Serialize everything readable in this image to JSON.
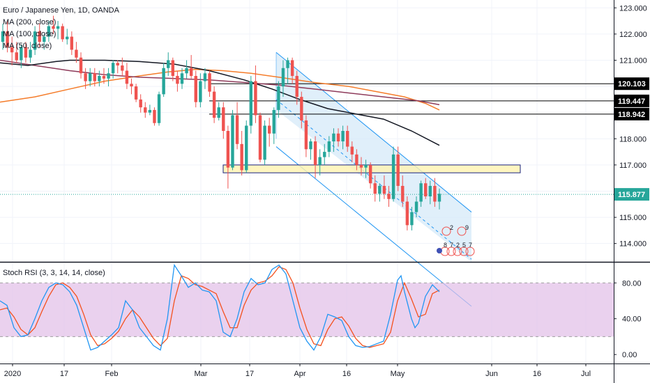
{
  "title": "Euro / Japanese Yen, 1D, OANDA",
  "indicators": [
    "MA (200, close)",
    "MA (100, close)",
    "MA (50, close)"
  ],
  "stoch_title": "Stoch RSI (3, 3, 14, 14, close)",
  "colors": {
    "up": "#26a69a",
    "down": "#ef5350",
    "ma200": "#131722",
    "ma100": "#8e3b5b",
    "ma50": "#f57c2a",
    "channel_fill": "#d6e9f8",
    "channel_line": "#2196f3",
    "zone_fill": "#fff3b0",
    "zone_border": "#1a237e",
    "stoch_k": "#2196f3",
    "stoch_d": "#f4511e",
    "stoch_band": "#e1bee7",
    "current_price": "#26a69a"
  },
  "price_axis": {
    "ticks": [
      "123.000",
      "122.000",
      "121.000",
      "120.000",
      "119.000",
      "118.000",
      "117.000",
      "116.000",
      "115.000",
      "114.000"
    ]
  },
  "stoch_axis": {
    "ticks": [
      "80.00",
      "40.00",
      "0.00"
    ]
  },
  "time_axis": {
    "labels": [
      "2020",
      "17",
      "Feb",
      "Mar",
      "17",
      "Apr",
      "16",
      "May",
      "Jun",
      "16",
      "Jul"
    ]
  },
  "price_labels": [
    {
      "value": 120.103,
      "text": "120.103",
      "kind": "hline"
    },
    {
      "value": 119.447,
      "text": "119.447",
      "kind": "hline"
    },
    {
      "value": 118.942,
      "text": "118.942",
      "kind": "hline"
    },
    {
      "value": 115.877,
      "text": "115.877",
      "kind": "current"
    }
  ],
  "pattern_labels": {
    "row1": [
      "2",
      "9"
    ],
    "row2": [
      "8",
      "7",
      "2",
      "5",
      "7"
    ]
  },
  "chart_data": {
    "type": "candlestick",
    "title": "Euro / Japanese Yen, 1D, OANDA",
    "ylim": [
      113.3,
      123.3
    ],
    "candles": [
      [
        121.7,
        122.4,
        121.4,
        122.1
      ],
      [
        122.1,
        122.5,
        121.3,
        121.5
      ],
      [
        121.5,
        121.9,
        120.8,
        121.3
      ],
      [
        121.3,
        121.7,
        120.9,
        121.0
      ],
      [
        121.0,
        121.6,
        120.7,
        121.5
      ],
      [
        121.5,
        121.7,
        120.9,
        121.1
      ],
      [
        121.1,
        121.7,
        120.9,
        121.4
      ],
      [
        121.4,
        122.3,
        121.2,
        122.1
      ],
      [
        122.1,
        122.4,
        121.5,
        121.7
      ],
      [
        121.7,
        122.0,
        121.4,
        121.9
      ],
      [
        121.9,
        122.5,
        121.7,
        122.3
      ],
      [
        122.3,
        122.7,
        122.0,
        122.2
      ],
      [
        122.2,
        122.5,
        121.8,
        122.3
      ],
      [
        122.3,
        122.4,
        121.7,
        121.8
      ],
      [
        121.8,
        122.2,
        121.6,
        121.9
      ],
      [
        121.9,
        122.1,
        121.2,
        121.4
      ],
      [
        121.4,
        121.7,
        120.9,
        121.1
      ],
      [
        121.1,
        121.3,
        120.3,
        120.5
      ],
      [
        120.5,
        120.7,
        119.9,
        120.2
      ],
      [
        120.2,
        120.7,
        120.0,
        120.5
      ],
      [
        120.5,
        120.7,
        120.0,
        120.2
      ],
      [
        120.2,
        120.6,
        120.0,
        120.4
      ],
      [
        120.4,
        120.7,
        120.1,
        120.3
      ],
      [
        120.3,
        120.7,
        120.0,
        120.5
      ],
      [
        120.5,
        121.0,
        120.3,
        120.9
      ],
      [
        120.9,
        121.0,
        120.5,
        120.8
      ],
      [
        120.8,
        121.1,
        120.4,
        120.6
      ],
      [
        120.6,
        120.9,
        119.9,
        120.1
      ],
      [
        120.1,
        120.3,
        119.7,
        120.0
      ],
      [
        120.0,
        120.1,
        119.4,
        119.5
      ],
      [
        119.5,
        119.7,
        119.0,
        119.2
      ],
      [
        119.2,
        119.4,
        118.8,
        119.0
      ],
      [
        119.0,
        119.3,
        118.9,
        119.1
      ],
      [
        119.1,
        119.2,
        118.5,
        118.6
      ],
      [
        118.6,
        119.8,
        118.5,
        119.7
      ],
      [
        119.7,
        120.9,
        119.6,
        120.7
      ],
      [
        120.7,
        121.3,
        120.4,
        121.0
      ],
      [
        121.0,
        121.1,
        120.2,
        120.4
      ],
      [
        120.4,
        120.6,
        119.8,
        120.1
      ],
      [
        120.1,
        120.7,
        119.9,
        120.5
      ],
      [
        120.5,
        121.0,
        120.3,
        120.7
      ],
      [
        120.7,
        121.2,
        120.3,
        120.4
      ],
      [
        120.4,
        120.6,
        119.2,
        119.4
      ],
      [
        119.4,
        120.5,
        119.2,
        120.2
      ],
      [
        120.2,
        120.7,
        119.9,
        120.5
      ],
      [
        120.5,
        120.6,
        119.6,
        119.8
      ],
      [
        119.8,
        120.0,
        118.6,
        118.8
      ],
      [
        118.8,
        119.4,
        118.7,
        119.2
      ],
      [
        119.2,
        119.4,
        118.0,
        118.3
      ],
      [
        118.3,
        118.5,
        116.1,
        116.9
      ],
      [
        116.9,
        119.1,
        116.8,
        118.9
      ],
      [
        118.9,
        119.4,
        117.6,
        117.8
      ],
      [
        117.8,
        118.3,
        116.6,
        116.8
      ],
      [
        116.8,
        118.7,
        116.7,
        118.5
      ],
      [
        118.5,
        120.4,
        118.2,
        120.2
      ],
      [
        120.2,
        120.8,
        118.6,
        118.9
      ],
      [
        118.9,
        119.0,
        117.1,
        117.2
      ],
      [
        117.2,
        118.7,
        117.0,
        118.5
      ],
      [
        118.5,
        118.8,
        117.7,
        118.2
      ],
      [
        118.2,
        119.2,
        117.8,
        119.1
      ],
      [
        119.1,
        120.2,
        118.8,
        120.0
      ],
      [
        120.0,
        121.0,
        119.6,
        120.7
      ],
      [
        120.7,
        121.1,
        120.1,
        121.0
      ],
      [
        121.0,
        121.1,
        120.1,
        120.4
      ],
      [
        120.4,
        120.6,
        119.3,
        119.6
      ],
      [
        119.6,
        119.8,
        118.4,
        118.7
      ],
      [
        118.7,
        118.9,
        117.3,
        117.6
      ],
      [
        117.6,
        118.0,
        117.2,
        117.9
      ],
      [
        117.9,
        118.1,
        116.5,
        117.0
      ],
      [
        117.0,
        117.6,
        116.6,
        117.3
      ],
      [
        117.3,
        117.8,
        117.0,
        117.5
      ],
      [
        117.5,
        118.1,
        117.3,
        117.9
      ],
      [
        117.9,
        118.4,
        117.5,
        118.2
      ],
      [
        118.2,
        118.4,
        117.7,
        117.9
      ],
      [
        117.9,
        118.5,
        117.6,
        118.3
      ],
      [
        118.3,
        118.5,
        117.5,
        117.7
      ],
      [
        117.7,
        117.9,
        117.1,
        117.4
      ],
      [
        117.4,
        117.6,
        116.8,
        117.0
      ],
      [
        117.0,
        117.3,
        116.6,
        116.9
      ],
      [
        116.9,
        117.2,
        116.5,
        117.0
      ],
      [
        117.0,
        117.1,
        116.1,
        116.3
      ],
      [
        116.3,
        116.6,
        115.6,
        115.9
      ],
      [
        115.9,
        116.3,
        115.6,
        116.2
      ],
      [
        116.2,
        116.6,
        115.7,
        115.9
      ],
      [
        115.9,
        116.2,
        115.4,
        115.7
      ],
      [
        115.7,
        117.7,
        115.6,
        117.4
      ],
      [
        117.4,
        117.7,
        116.0,
        116.2
      ],
      [
        116.2,
        116.6,
        115.4,
        115.6
      ],
      [
        115.6,
        115.8,
        114.5,
        114.7
      ],
      [
        114.7,
        115.4,
        114.5,
        115.2
      ],
      [
        115.2,
        115.8,
        115.0,
        115.6
      ],
      [
        115.6,
        116.4,
        115.4,
        116.3
      ],
      [
        116.3,
        116.5,
        115.7,
        115.8
      ],
      [
        115.8,
        116.4,
        115.5,
        116.2
      ],
      [
        116.2,
        116.5,
        115.4,
        115.6
      ],
      [
        115.6,
        116.1,
        115.3,
        115.9
      ]
    ],
    "ma50": [
      [
        0,
        119.4
      ],
      [
        50,
        119.6
      ],
      [
        100,
        119.9
      ],
      [
        150,
        120.2
      ],
      [
        200,
        120.4
      ],
      [
        240,
        120.55
      ],
      [
        280,
        120.65
      ],
      [
        320,
        120.6
      ],
      [
        360,
        120.5
      ],
      [
        400,
        120.35
      ],
      [
        450,
        120.15
      ],
      [
        500,
        120.0
      ],
      [
        540,
        119.8
      ],
      [
        580,
        119.6
      ],
      [
        610,
        119.35
      ],
      [
        630,
        119.1
      ]
    ],
    "ma100": [
      [
        0,
        121.0
      ],
      [
        50,
        120.8
      ],
      [
        100,
        120.6
      ],
      [
        150,
        120.45
      ],
      [
        200,
        120.35
      ],
      [
        250,
        120.3
      ],
      [
        300,
        120.25
      ],
      [
        350,
        120.15
      ],
      [
        400,
        120.05
      ],
      [
        450,
        119.9
      ],
      [
        500,
        119.75
      ],
      [
        550,
        119.6
      ],
      [
        600,
        119.45
      ],
      [
        630,
        119.3
      ]
    ],
    "ma200": [
      [
        0,
        120.9
      ],
      [
        40,
        120.8
      ],
      [
        80,
        120.95
      ],
      [
        100,
        121.0
      ],
      [
        150,
        121.0
      ],
      [
        200,
        120.95
      ],
      [
        250,
        120.85
      ],
      [
        300,
        120.6
      ],
      [
        350,
        120.25
      ],
      [
        390,
        119.9
      ],
      [
        430,
        119.5
      ],
      [
        470,
        119.15
      ],
      [
        510,
        118.95
      ],
      [
        550,
        118.75
      ],
      [
        590,
        118.3
      ],
      [
        630,
        117.75
      ]
    ],
    "hlines": [
      120.103,
      119.447,
      118.942
    ],
    "zone": [
      116.7,
      117.0
    ],
    "current_price": 115.877,
    "stoch_rsi": {
      "ylim": [
        -10,
        102
      ],
      "bands": [
        20,
        80
      ],
      "k": [
        [
          0,
          60
        ],
        [
          10,
          55
        ],
        [
          20,
          30
        ],
        [
          30,
          20
        ],
        [
          40,
          22
        ],
        [
          50,
          40
        ],
        [
          60,
          60
        ],
        [
          70,
          75
        ],
        [
          80,
          80
        ],
        [
          90,
          78
        ],
        [
          100,
          70
        ],
        [
          110,
          55
        ],
        [
          120,
          30
        ],
        [
          130,
          5
        ],
        [
          140,
          8
        ],
        [
          150,
          15
        ],
        [
          160,
          22
        ],
        [
          170,
          30
        ],
        [
          180,
          60
        ],
        [
          190,
          50
        ],
        [
          200,
          30
        ],
        [
          210,
          20
        ],
        [
          220,
          10
        ],
        [
          230,
          5
        ],
        [
          240,
          40
        ],
        [
          250,
          100
        ],
        [
          260,
          88
        ],
        [
          270,
          75
        ],
        [
          280,
          80
        ],
        [
          290,
          72
        ],
        [
          300,
          70
        ],
        [
          310,
          60
        ],
        [
          320,
          25
        ],
        [
          330,
          20
        ],
        [
          340,
          40
        ],
        [
          350,
          70
        ],
        [
          360,
          85
        ],
        [
          370,
          78
        ],
        [
          380,
          80
        ],
        [
          390,
          95
        ],
        [
          400,
          100
        ],
        [
          410,
          90
        ],
        [
          420,
          60
        ],
        [
          430,
          30
        ],
        [
          440,
          15
        ],
        [
          450,
          5
        ],
        [
          460,
          20
        ],
        [
          470,
          45
        ],
        [
          480,
          42
        ],
        [
          490,
          38
        ],
        [
          500,
          20
        ],
        [
          510,
          10
        ],
        [
          520,
          8
        ],
        [
          530,
          9
        ],
        [
          540,
          12
        ],
        [
          550,
          15
        ],
        [
          560,
          45
        ],
        [
          570,
          83
        ],
        [
          575,
          88
        ],
        [
          580,
          70
        ],
        [
          590,
          40
        ],
        [
          595,
          30
        ],
        [
          600,
          35
        ],
        [
          610,
          65
        ],
        [
          620,
          78
        ],
        [
          630,
          70
        ]
      ],
      "d": [
        [
          0,
          50
        ],
        [
          10,
          52
        ],
        [
          20,
          42
        ],
        [
          30,
          28
        ],
        [
          40,
          22
        ],
        [
          50,
          30
        ],
        [
          60,
          48
        ],
        [
          70,
          65
        ],
        [
          80,
          78
        ],
        [
          90,
          80
        ],
        [
          100,
          75
        ],
        [
          110,
          65
        ],
        [
          120,
          45
        ],
        [
          130,
          22
        ],
        [
          140,
          10
        ],
        [
          150,
          12
        ],
        [
          160,
          18
        ],
        [
          170,
          26
        ],
        [
          180,
          40
        ],
        [
          190,
          50
        ],
        [
          200,
          42
        ],
        [
          210,
          30
        ],
        [
          220,
          18
        ],
        [
          230,
          10
        ],
        [
          240,
          18
        ],
        [
          250,
          60
        ],
        [
          260,
          88
        ],
        [
          270,
          85
        ],
        [
          280,
          78
        ],
        [
          290,
          76
        ],
        [
          300,
          72
        ],
        [
          310,
          68
        ],
        [
          320,
          48
        ],
        [
          330,
          30
        ],
        [
          340,
          30
        ],
        [
          350,
          55
        ],
        [
          360,
          72
        ],
        [
          370,
          80
        ],
        [
          380,
          82
        ],
        [
          390,
          88
        ],
        [
          400,
          98
        ],
        [
          410,
          95
        ],
        [
          420,
          80
        ],
        [
          430,
          52
        ],
        [
          440,
          28
        ],
        [
          450,
          12
        ],
        [
          460,
          10
        ],
        [
          470,
          28
        ],
        [
          480,
          40
        ],
        [
          490,
          42
        ],
        [
          500,
          32
        ],
        [
          510,
          18
        ],
        [
          520,
          10
        ],
        [
          530,
          8
        ],
        [
          540,
          10
        ],
        [
          550,
          12
        ],
        [
          560,
          25
        ],
        [
          570,
          60
        ],
        [
          580,
          80
        ],
        [
          590,
          62
        ],
        [
          600,
          42
        ],
        [
          610,
          45
        ],
        [
          620,
          68
        ],
        [
          630,
          72
        ]
      ]
    }
  }
}
